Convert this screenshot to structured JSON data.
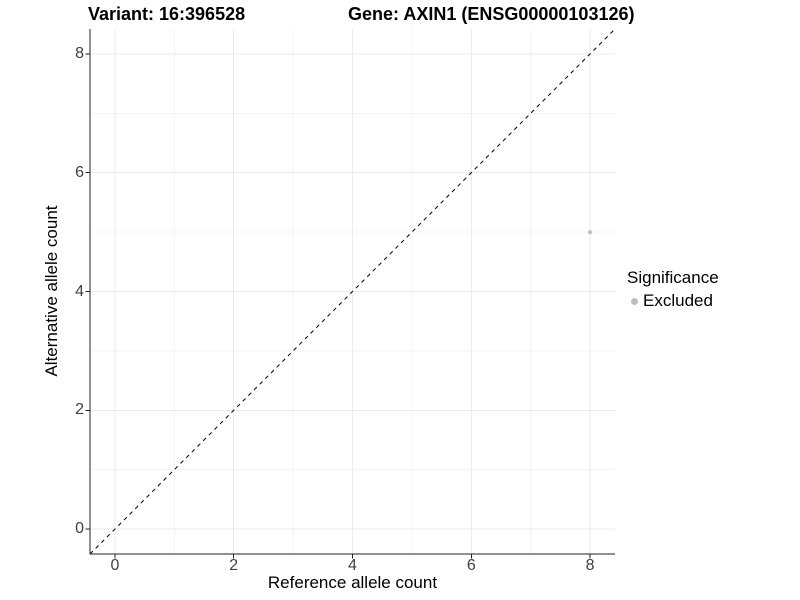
{
  "figure": {
    "title_left": "Variant: 16:396528",
    "title_right": "Gene: AXIN1 (ENSG00000103126)"
  },
  "chart_data": {
    "type": "scatter",
    "title": "Variant: 16:396528   Gene: AXIN1 (ENSG00000103126)",
    "xlabel": "Reference allele count",
    "ylabel": "Alternative allele count",
    "xlim": [
      -0.42,
      8.42
    ],
    "ylim": [
      -0.42,
      8.42
    ],
    "x_ticks": [
      0,
      2,
      4,
      6,
      8
    ],
    "y_ticks": [
      0,
      2,
      4,
      6,
      8
    ],
    "x_minor_ticks": [
      1,
      3,
      5,
      7
    ],
    "y_minor_ticks": [
      1,
      3,
      5,
      7
    ],
    "grid": true,
    "points": [
      {
        "x": 8,
        "y": 5,
        "series": "Excluded"
      }
    ],
    "reference_line": {
      "kind": "identity",
      "slope": 1,
      "intercept": 0,
      "style": "dashed"
    },
    "legend": {
      "title": "Significance",
      "position": "right",
      "entries": [
        {
          "label": "Excluded",
          "color": "#BEBEBE",
          "marker": "circle"
        }
      ]
    },
    "colors": {
      "point": "#BEBEBE",
      "grid_major": "#EBEBEB",
      "grid_minor": "#F4F4F4",
      "axis_line": "#222222",
      "reference_line": "#000000",
      "tick_text": "#404040",
      "title_text": "#000000",
      "background": "#FFFFFF"
    }
  }
}
